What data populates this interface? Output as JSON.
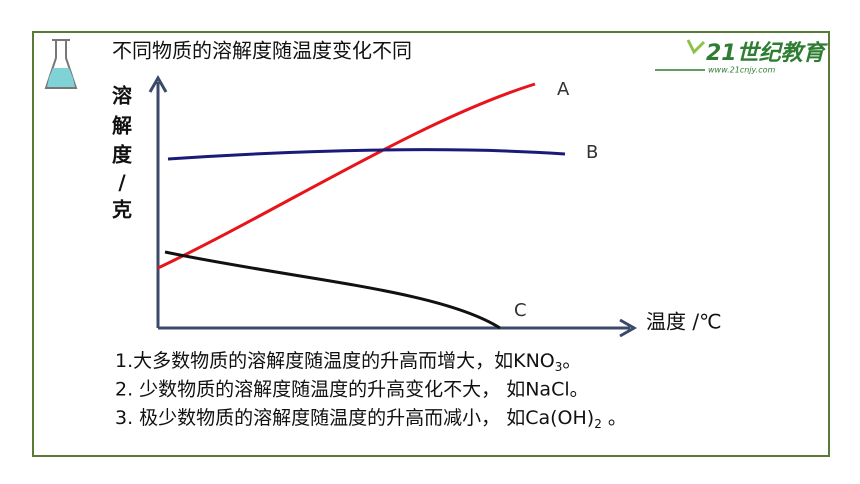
{
  "header": {
    "title": "不同物质的溶解度随温度变化不同",
    "logo": "21世纪教育",
    "logo_url": "www.21cnjy.com"
  },
  "diagram": {
    "y_label": [
      "溶",
      "解",
      "度",
      "/",
      "克"
    ],
    "x_label": "温度 /℃",
    "curves": [
      {
        "label": "A"
      },
      {
        "label": "B"
      },
      {
        "label": "C"
      }
    ]
  },
  "notes": [
    {
      "main": "1.大多数物质的溶解度随温度的升高而增大，如KNO",
      "sub": "3",
      "end": "。"
    },
    {
      "main": "2. 少数物质的溶解度随温度的升高变化不大， 如NaCl。"
    },
    {
      "main": "3. 极少数物质的溶解度随温度的升高而减小， 如Ca(OH)",
      "sub": "2",
      "end": " 。"
    }
  ]
}
